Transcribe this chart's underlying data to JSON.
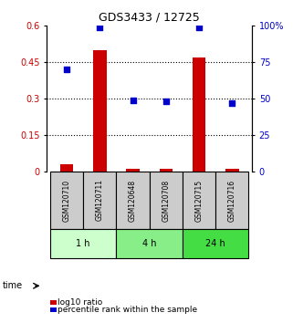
{
  "title": "GDS3433 / 12725",
  "samples": [
    "GSM120710",
    "GSM120711",
    "GSM120648",
    "GSM120708",
    "GSM120715",
    "GSM120716"
  ],
  "log10_ratio": [
    0.03,
    0.5,
    0.01,
    0.01,
    0.47,
    0.01
  ],
  "percentile_rank": [
    70,
    99,
    49,
    48,
    99,
    47
  ],
  "bar_color": "#cc0000",
  "dot_color": "#0000cc",
  "ylim_left": [
    0,
    0.6
  ],
  "ylim_right": [
    0,
    100
  ],
  "yticks_left": [
    0,
    0.15,
    0.3,
    0.45,
    0.6
  ],
  "ytick_labels_left": [
    "0",
    "0.15",
    "0.3",
    "0.45",
    "0.6"
  ],
  "yticks_right": [
    0,
    25,
    50,
    75,
    100
  ],
  "ytick_labels_right": [
    "0",
    "25",
    "50",
    "75",
    "100%"
  ],
  "time_groups": [
    {
      "label": "1 h",
      "indices": [
        0,
        1
      ],
      "color": "#ccffcc"
    },
    {
      "label": "4 h",
      "indices": [
        2,
        3
      ],
      "color": "#88ee88"
    },
    {
      "label": "24 h",
      "indices": [
        4,
        5
      ],
      "color": "#44dd44"
    }
  ],
  "legend_red_label": "log10 ratio",
  "legend_blue_label": "percentile rank within the sample",
  "time_label": "time",
  "bg_sample_color": "#cccccc",
  "bar_width": 0.4
}
